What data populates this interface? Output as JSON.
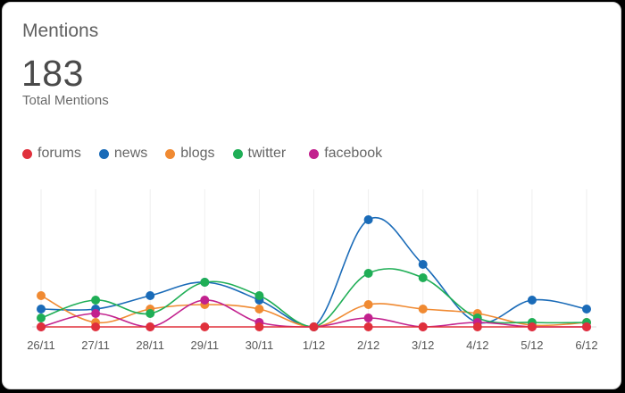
{
  "card": {
    "title": "Mentions",
    "total_value": "183",
    "total_label": "Total Mentions"
  },
  "chart_data": {
    "type": "line",
    "categories": [
      "26/11",
      "27/11",
      "28/11",
      "29/11",
      "30/11",
      "1/12",
      "2/12",
      "3/12",
      "4/12",
      "5/12",
      "6/12"
    ],
    "ylim": [
      0,
      12
    ],
    "grid": "vertical",
    "legend_position": "top-left",
    "series": [
      {
        "name": "forums",
        "color": "#e0303c",
        "values": [
          0,
          0,
          0,
          0,
          0,
          0,
          0,
          0,
          0,
          0,
          0
        ]
      },
      {
        "name": "news",
        "color": "#1a6bb8",
        "values": [
          2,
          2,
          3.5,
          5,
          3,
          0,
          12,
          7,
          0.5,
          3,
          2
        ]
      },
      {
        "name": "blogs",
        "color": "#f08a32",
        "values": [
          3.5,
          0.5,
          2,
          2.5,
          2,
          0,
          2.5,
          2,
          1.5,
          0.2,
          0.5
        ]
      },
      {
        "name": "twitter",
        "color": "#1fae56",
        "values": [
          1,
          3,
          1.5,
          5,
          3.5,
          0,
          6,
          5.5,
          1,
          0.5,
          0.5
        ]
      },
      {
        "name": "facebook",
        "color": "#c2218e",
        "values": [
          0,
          1.5,
          0,
          3,
          0.5,
          0,
          1,
          0,
          0.5,
          0,
          0
        ]
      }
    ]
  }
}
